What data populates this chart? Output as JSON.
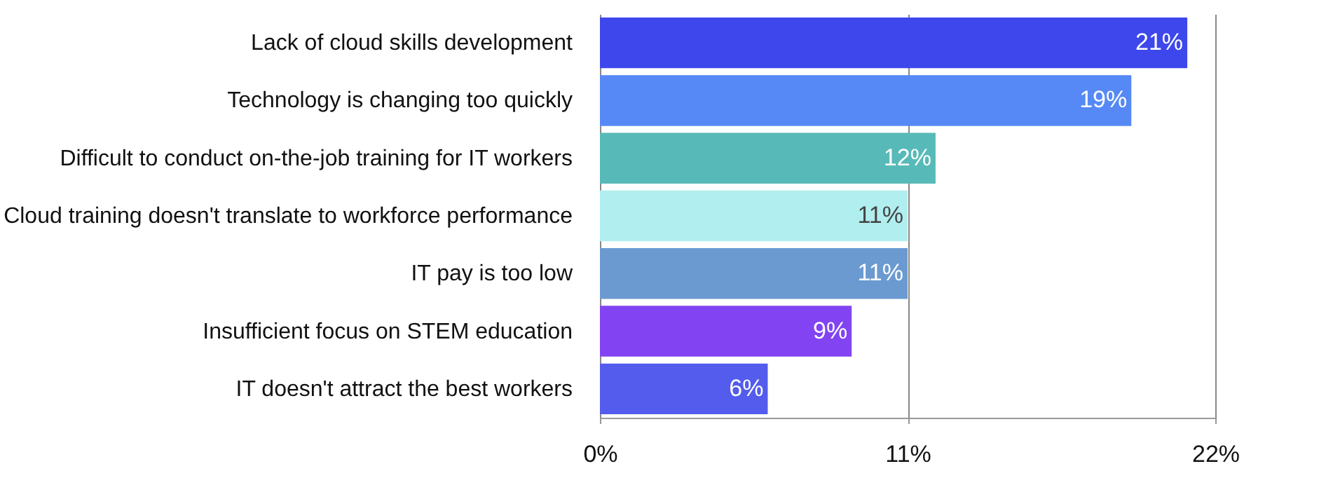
{
  "chart_data": {
    "type": "bar",
    "orientation": "horizontal",
    "categories": [
      "Lack of cloud skills development",
      "Technology is changing too quickly",
      "Difficult to conduct on-the-job training for IT workers",
      "Cloud training doesn't translate to workforce performance",
      "IT pay is too low",
      "Insufficient focus on STEM education",
      "IT doesn't attract the best workers"
    ],
    "values": [
      21,
      19,
      12,
      11,
      11,
      9,
      6
    ],
    "colors": [
      "#3d47ec",
      "#5689f5",
      "#58bab8",
      "#b1eeef",
      "#6a9ad0",
      "#8244f2",
      "#535cec"
    ],
    "value_labels": [
      "21%",
      "19%",
      "12%",
      "11%",
      "11%",
      "9%",
      "6%"
    ],
    "xlim": [
      0,
      22
    ],
    "xticks": [
      {
        "value": 0,
        "label": "0%"
      },
      {
        "value": 11,
        "label": "11%"
      },
      {
        "value": 22,
        "label": "22%"
      }
    ],
    "grid": "x"
  }
}
